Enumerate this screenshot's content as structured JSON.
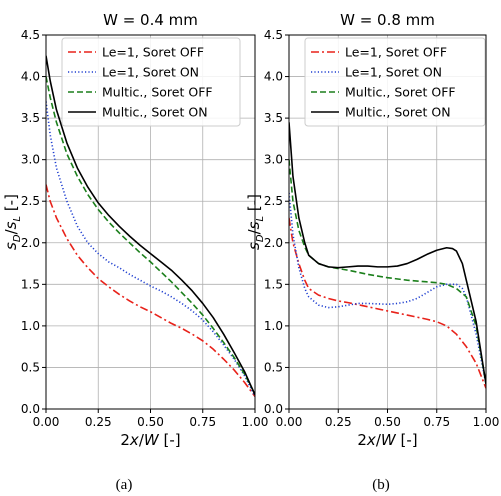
{
  "chart_data": [
    {
      "type": "line",
      "panel_caption": "(a)",
      "title": "W = 0.4 mm",
      "xlabel_parts": [
        "2",
        "x",
        "/",
        "W",
        " [-]"
      ],
      "ylabel_parts": [
        "s",
        "D",
        "/",
        "s",
        "L",
        " [-]"
      ],
      "xlim": [
        0,
        1
      ],
      "ylim": [
        0,
        4.5
      ],
      "xticks": [
        0,
        0.25,
        0.5,
        0.75,
        1
      ],
      "xtick_labels": [
        "0.00",
        "0.25",
        "0.50",
        "0.75",
        "1.00"
      ],
      "yticks": [
        0,
        0.5,
        1,
        1.5,
        2,
        2.5,
        3,
        3.5,
        4,
        4.5
      ],
      "ytick_labels": [
        "0.0",
        "0.5",
        "1.0",
        "1.5",
        "2.0",
        "2.5",
        "3.0",
        "3.5",
        "4.0",
        "4.5"
      ],
      "grid": true,
      "legend_position": "top-right",
      "series": [
        {
          "name": "Le=1, Soret OFF",
          "color": "#e8221a",
          "dash": "dashdot",
          "x": [
            0,
            0.02,
            0.05,
            0.1,
            0.15,
            0.2,
            0.25,
            0.3,
            0.35,
            0.4,
            0.45,
            0.5,
            0.55,
            0.6,
            0.65,
            0.7,
            0.75,
            0.8,
            0.85,
            0.9,
            0.95,
            1.0
          ],
          "y": [
            2.7,
            2.5,
            2.3,
            2.05,
            1.85,
            1.7,
            1.57,
            1.47,
            1.38,
            1.3,
            1.23,
            1.17,
            1.1,
            1.03,
            0.97,
            0.9,
            0.82,
            0.72,
            0.6,
            0.47,
            0.32,
            0.15
          ]
        },
        {
          "name": "Le=1, Soret ON",
          "color": "#1f3fd0",
          "dash": "dotted",
          "x": [
            0,
            0.02,
            0.05,
            0.1,
            0.15,
            0.2,
            0.25,
            0.3,
            0.35,
            0.4,
            0.45,
            0.5,
            0.55,
            0.6,
            0.65,
            0.7,
            0.75,
            0.8,
            0.85,
            0.9,
            0.95,
            1.0
          ],
          "y": [
            3.7,
            3.3,
            2.9,
            2.5,
            2.2,
            2.0,
            1.87,
            1.77,
            1.7,
            1.62,
            1.55,
            1.48,
            1.42,
            1.35,
            1.27,
            1.18,
            1.07,
            0.93,
            0.77,
            0.6,
            0.4,
            0.15
          ]
        },
        {
          "name": "Multic., Soret OFF",
          "color": "#1b7f1b",
          "dash": "dashed",
          "x": [
            0,
            0.02,
            0.05,
            0.1,
            0.15,
            0.2,
            0.25,
            0.3,
            0.35,
            0.4,
            0.45,
            0.5,
            0.55,
            0.6,
            0.65,
            0.7,
            0.75,
            0.8,
            0.85,
            0.9,
            0.95,
            1.0
          ],
          "y": [
            4.0,
            3.75,
            3.45,
            3.07,
            2.8,
            2.58,
            2.4,
            2.25,
            2.12,
            2.0,
            1.88,
            1.77,
            1.65,
            1.53,
            1.4,
            1.27,
            1.13,
            0.97,
            0.8,
            0.62,
            0.42,
            0.18
          ]
        },
        {
          "name": "Multic., Soret ON",
          "color": "#000000",
          "dash": "solid",
          "x": [
            0,
            0.02,
            0.05,
            0.1,
            0.15,
            0.2,
            0.25,
            0.3,
            0.35,
            0.4,
            0.45,
            0.5,
            0.55,
            0.6,
            0.65,
            0.7,
            0.75,
            0.8,
            0.85,
            0.9,
            0.95,
            1.0
          ],
          "y": [
            4.25,
            3.95,
            3.6,
            3.2,
            2.9,
            2.67,
            2.48,
            2.33,
            2.2,
            2.08,
            1.97,
            1.87,
            1.77,
            1.67,
            1.55,
            1.42,
            1.27,
            1.1,
            0.9,
            0.68,
            0.45,
            0.17
          ]
        }
      ]
    },
    {
      "type": "line",
      "panel_caption": "(b)",
      "title": "W = 0.8 mm",
      "xlabel_parts": [
        "2",
        "x",
        "/",
        "W",
        " [-]"
      ],
      "ylabel_parts": [
        "s",
        "D",
        "/",
        "s",
        "L",
        " [-]"
      ],
      "xlim": [
        0,
        1
      ],
      "ylim": [
        0,
        4.5
      ],
      "xticks": [
        0,
        0.25,
        0.5,
        0.75,
        1
      ],
      "xtick_labels": [
        "0.00",
        "0.25",
        "0.50",
        "0.75",
        "1.00"
      ],
      "yticks": [
        0,
        0.5,
        1,
        1.5,
        2,
        2.5,
        3,
        3.5,
        4,
        4.5
      ],
      "ytick_labels": [
        "0.0",
        "0.5",
        "1.0",
        "1.5",
        "2.0",
        "2.5",
        "3.0",
        "3.5",
        "4.0",
        "4.5"
      ],
      "grid": true,
      "legend_position": "top-right",
      "series": [
        {
          "name": "Le=1, Soret OFF",
          "color": "#e8221a",
          "dash": "dashdot",
          "x": [
            0,
            0.02,
            0.05,
            0.08,
            0.1,
            0.15,
            0.2,
            0.25,
            0.3,
            0.4,
            0.5,
            0.6,
            0.7,
            0.75,
            0.8,
            0.85,
            0.9,
            0.95,
            1.0
          ],
          "y": [
            2.3,
            2.0,
            1.75,
            1.55,
            1.45,
            1.37,
            1.33,
            1.3,
            1.28,
            1.23,
            1.18,
            1.13,
            1.08,
            1.05,
            1.0,
            0.9,
            0.75,
            0.55,
            0.25
          ]
        },
        {
          "name": "Le=1, Soret ON",
          "color": "#1f3fd0",
          "dash": "dotted",
          "x": [
            0,
            0.02,
            0.05,
            0.08,
            0.1,
            0.15,
            0.2,
            0.25,
            0.3,
            0.35,
            0.4,
            0.5,
            0.55,
            0.6,
            0.65,
            0.7,
            0.75,
            0.8,
            0.85,
            0.88,
            0.9,
            0.95,
            1.0
          ],
          "y": [
            2.6,
            2.1,
            1.7,
            1.45,
            1.35,
            1.25,
            1.22,
            1.23,
            1.25,
            1.27,
            1.27,
            1.26,
            1.27,
            1.29,
            1.33,
            1.4,
            1.47,
            1.5,
            1.5,
            1.45,
            1.35,
            0.9,
            0.3
          ]
        },
        {
          "name": "Multic., Soret OFF",
          "color": "#1b7f1b",
          "dash": "dashed",
          "x": [
            0,
            0.02,
            0.05,
            0.08,
            0.1,
            0.15,
            0.2,
            0.25,
            0.3,
            0.4,
            0.5,
            0.6,
            0.7,
            0.75,
            0.8,
            0.85,
            0.9,
            0.95,
            1.0
          ],
          "y": [
            3.0,
            2.5,
            2.15,
            1.95,
            1.85,
            1.75,
            1.71,
            1.69,
            1.67,
            1.62,
            1.58,
            1.55,
            1.53,
            1.52,
            1.5,
            1.45,
            1.35,
            1.0,
            0.3
          ]
        },
        {
          "name": "Multic., Soret ON",
          "color": "#000000",
          "dash": "solid",
          "x": [
            0,
            0.02,
            0.05,
            0.08,
            0.1,
            0.15,
            0.2,
            0.25,
            0.3,
            0.35,
            0.4,
            0.45,
            0.5,
            0.55,
            0.6,
            0.65,
            0.7,
            0.75,
            0.8,
            0.83,
            0.85,
            0.88,
            0.9,
            0.95,
            1.0
          ],
          "y": [
            3.45,
            2.8,
            2.3,
            2.0,
            1.85,
            1.75,
            1.71,
            1.7,
            1.71,
            1.72,
            1.72,
            1.71,
            1.71,
            1.72,
            1.75,
            1.8,
            1.86,
            1.91,
            1.94,
            1.93,
            1.9,
            1.75,
            1.55,
            1.05,
            0.3
          ]
        }
      ]
    }
  ]
}
